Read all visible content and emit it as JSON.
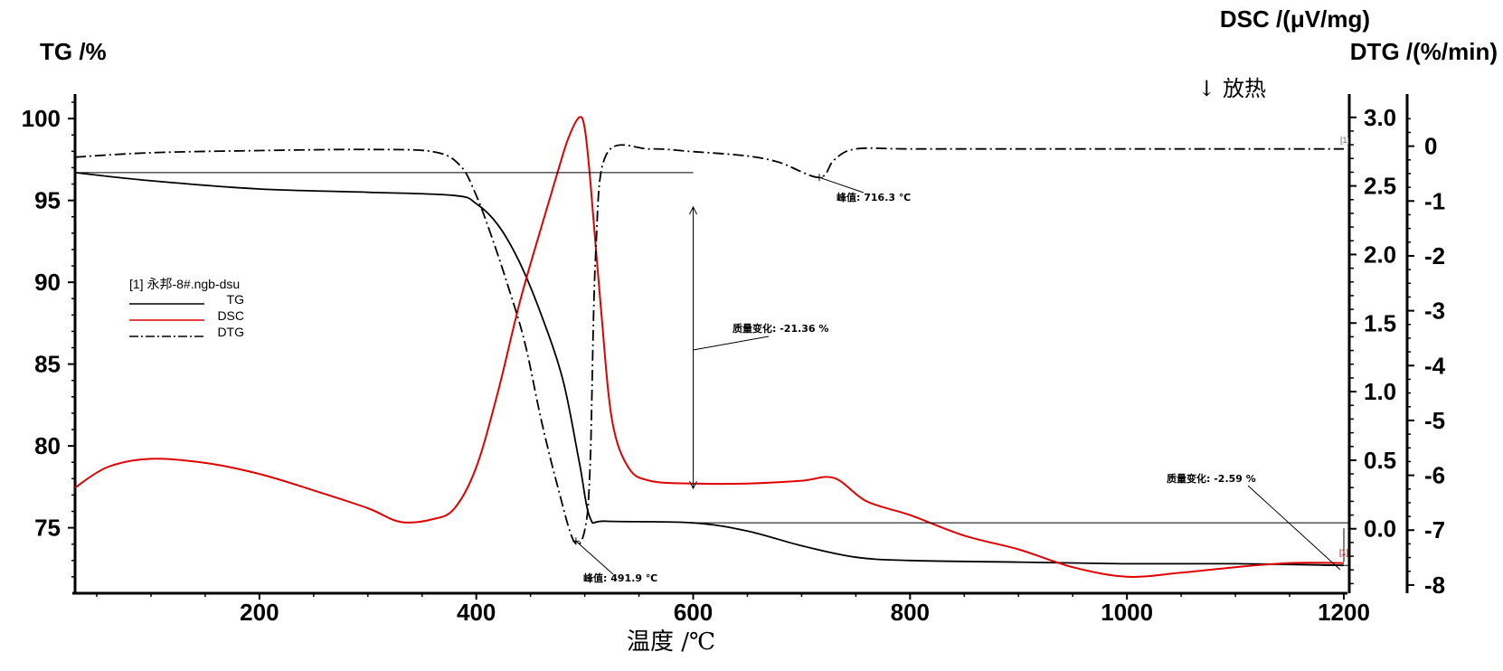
{
  "chart_data": {
    "type": "line",
    "title": "",
    "xlabel": "温度 /℃",
    "xlim": [
      30,
      1205
    ],
    "xticks": [
      200,
      400,
      600,
      800,
      1000,
      1200
    ],
    "axes": {
      "tg": {
        "label": "TG /%",
        "ylim": [
          71,
          101.5
        ],
        "ticks": [
          75,
          80,
          85,
          90,
          95,
          100
        ]
      },
      "dsc": {
        "label": "DSC /(μV/mg)",
        "ylim": [
          -0.47,
          3.17
        ],
        "ticks": [
          "0.0",
          "0.5",
          "1.0",
          "1.5",
          "2.0",
          "2.5",
          "3.0"
        ]
      },
      "dtg": {
        "label": "DTG /(%/min)",
        "ylim": [
          -8.15,
          0.95
        ],
        "ticks": [
          -8,
          -7,
          -6,
          -5,
          -4,
          -3,
          -2,
          -1,
          0
        ]
      }
    },
    "exo_label": "↓ 放热",
    "legend": {
      "file": "[1] 永邦-8#.ngb-dsu",
      "entries": [
        "TG",
        "DSC",
        "DTG"
      ],
      "placement": "left"
    },
    "colors": {
      "TG": "#000000",
      "DSC": "#e00000",
      "DTG": "#000000"
    },
    "series": [
      {
        "name": "TG",
        "axis": "tg",
        "style": "solid",
        "color": "#000000",
        "x": [
          30,
          100,
          200,
          300,
          380,
          400,
          420,
          440,
          460,
          480,
          495,
          505,
          520,
          600,
          650,
          700,
          750,
          800,
          900,
          1000,
          1100,
          1200
        ],
        "y": [
          96.7,
          96.2,
          95.7,
          95.5,
          95.3,
          94.8,
          93.5,
          91.2,
          88.0,
          84.0,
          79.0,
          75.6,
          75.4,
          75.3,
          74.8,
          73.9,
          73.2,
          73.0,
          72.9,
          72.8,
          72.8,
          72.7
        ]
      },
      {
        "name": "DSC",
        "axis": "dsc",
        "style": "solid",
        "color": "#e00000",
        "x": [
          30,
          60,
          100,
          150,
          200,
          250,
          300,
          330,
          360,
          380,
          400,
          420,
          440,
          460,
          475,
          485,
          495,
          500,
          505,
          515,
          525,
          540,
          560,
          600,
          650,
          700,
          730,
          760,
          800,
          850,
          900,
          950,
          1000,
          1050,
          1100,
          1150,
          1200
        ],
        "y": [
          0.3,
          0.45,
          0.51,
          0.48,
          0.4,
          0.28,
          0.15,
          0.05,
          0.07,
          0.15,
          0.45,
          1.0,
          1.65,
          2.2,
          2.6,
          2.85,
          3.0,
          2.92,
          2.55,
          1.6,
          0.8,
          0.45,
          0.35,
          0.33,
          0.33,
          0.35,
          0.37,
          0.2,
          0.1,
          -0.05,
          -0.15,
          -0.28,
          -0.35,
          -0.32,
          -0.28,
          -0.25,
          -0.25
        ]
      },
      {
        "name": "DTG",
        "axis": "dtg",
        "style": "dashdot",
        "color": "#000000",
        "x": [
          30,
          100,
          200,
          300,
          360,
          385,
          400,
          415,
          430,
          445,
          460,
          475,
          490,
          500,
          505,
          510,
          520,
          560,
          600,
          650,
          680,
          716.3,
          730,
          750,
          800,
          900,
          1000,
          1100,
          1200
        ],
        "y": [
          -0.2,
          -0.12,
          -0.08,
          -0.06,
          -0.1,
          -0.35,
          -0.9,
          -1.7,
          -2.6,
          -3.6,
          -5.0,
          -6.2,
          -7.2,
          -7.0,
          -5.8,
          -2.0,
          -0.15,
          -0.05,
          -0.1,
          -0.18,
          -0.3,
          -0.57,
          -0.25,
          -0.05,
          -0.05,
          -0.05,
          -0.05,
          -0.05,
          -0.05
        ]
      }
    ],
    "annotations": [
      {
        "text": "峰值: 716.3 ℃",
        "series": "DTG",
        "x": 716.3
      },
      {
        "text": "峰值: 491.9 ℃",
        "series": "DTG",
        "x": 491.9
      },
      {
        "text": "质量变化: -21.36 %",
        "series": "TG",
        "from": 96.7,
        "to": 75.3
      },
      {
        "text": "质量变化: -2.59 %",
        "series": "TG",
        "from": 75.3,
        "to": 72.7
      }
    ],
    "curve_marker": "[1]",
    "grid": false
  }
}
